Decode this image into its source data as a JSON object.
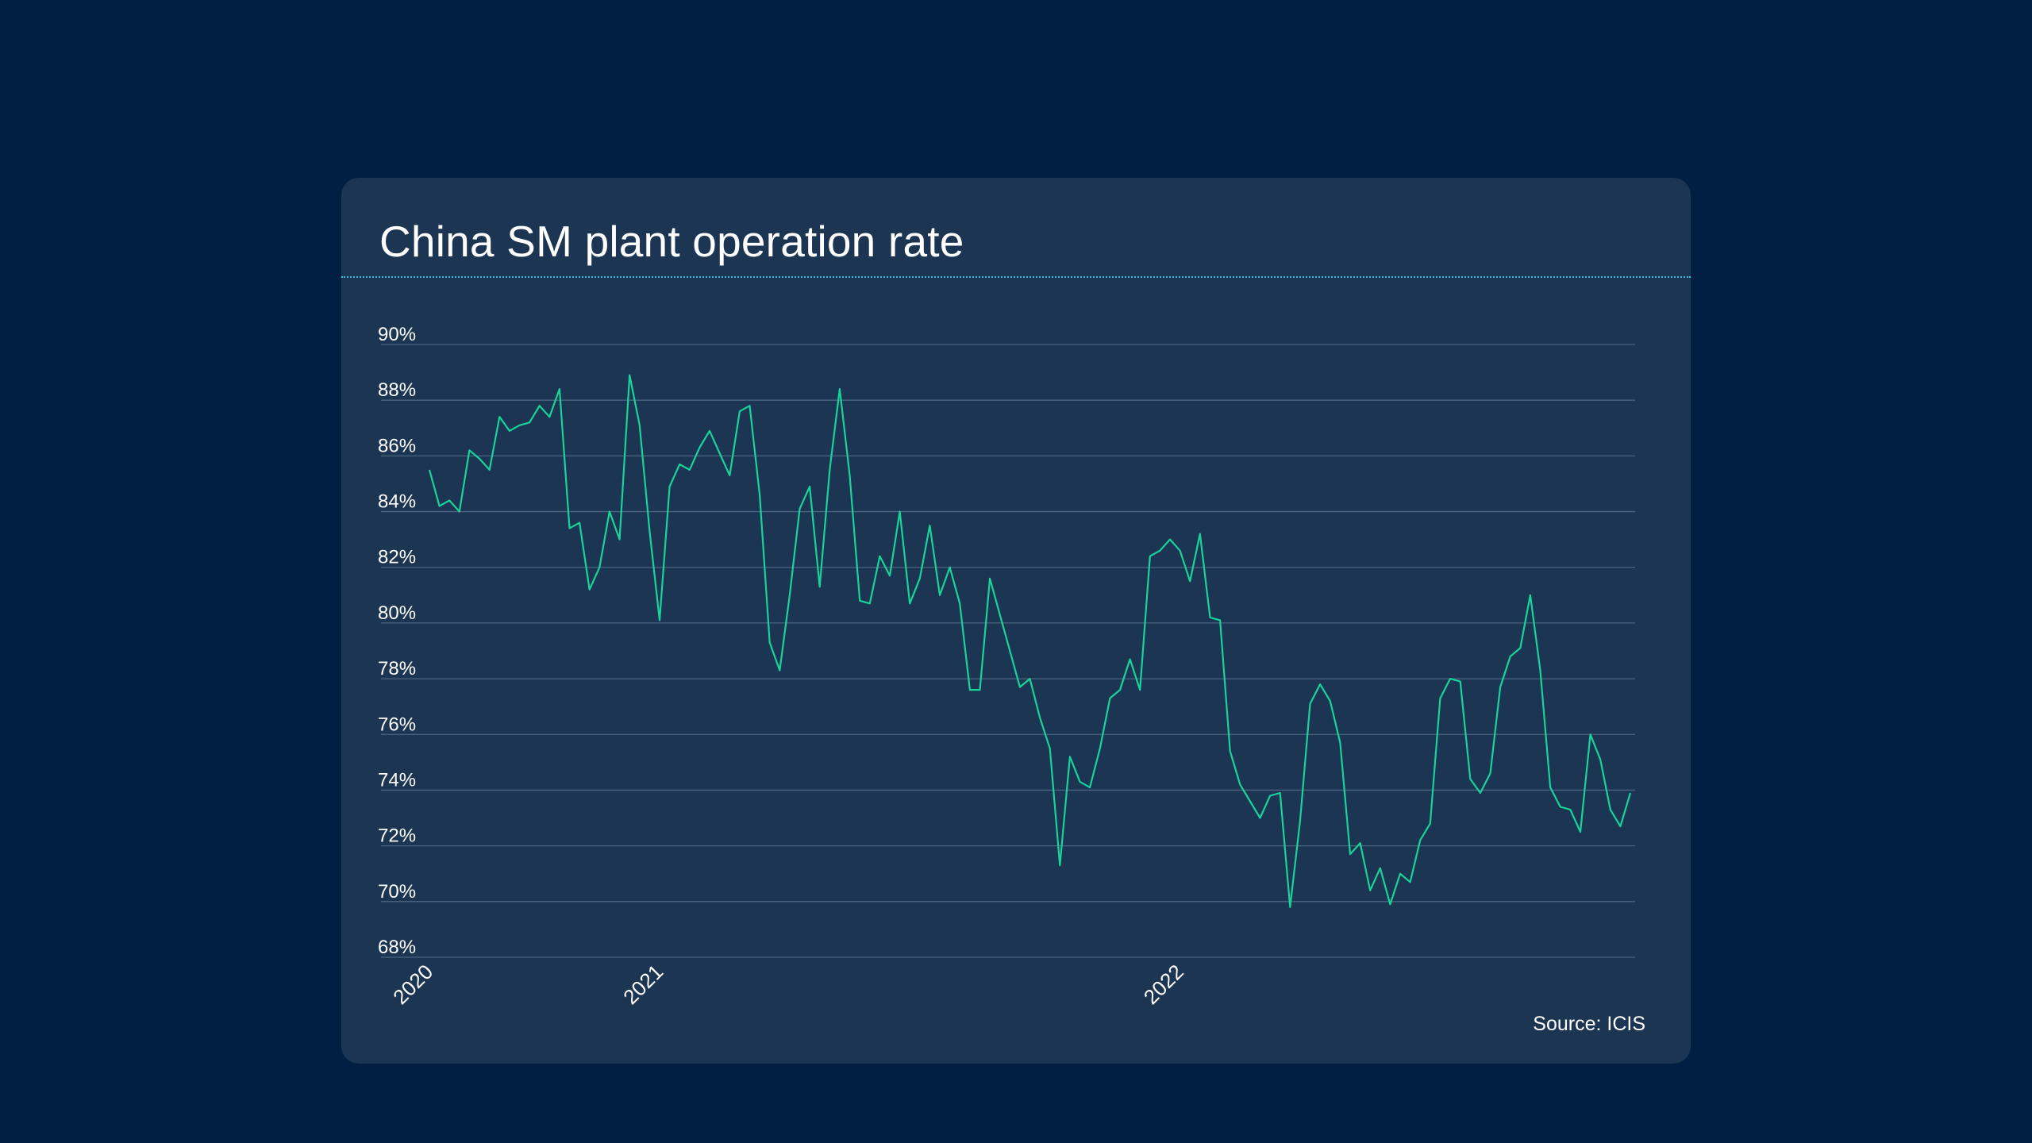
{
  "chart": {
    "title": "China SM plant operation rate",
    "source": "Source: ICIS"
  },
  "colors": {
    "background": "#001f42",
    "card": "#1b3553",
    "line": "#19d39a",
    "grid": "#4b6582",
    "title_rule": "#38bfd6",
    "text": "#ffffff"
  },
  "chart_data": {
    "type": "line",
    "title": "China SM plant operation rate",
    "xlabel": "",
    "ylabel": "",
    "y_unit": "%",
    "ylim": [
      68,
      90
    ],
    "y_ticks": [
      {
        "value": 90,
        "label": "90%"
      },
      {
        "value": 88,
        "label": "88%"
      },
      {
        "value": 86,
        "label": "86%"
      },
      {
        "value": 84,
        "label": "84%"
      },
      {
        "value": 82,
        "label": "82%"
      },
      {
        "value": 80,
        "label": "80%"
      },
      {
        "value": 78,
        "label": "78%"
      },
      {
        "value": 76,
        "label": "76%"
      },
      {
        "value": 74,
        "label": "74%"
      },
      {
        "value": 72,
        "label": "72%"
      },
      {
        "value": 70,
        "label": "70%"
      },
      {
        "value": 68,
        "label": "68%"
      }
    ],
    "x_ticks": [
      {
        "week": 0,
        "label": "2020"
      },
      {
        "week": 23,
        "label": "2021"
      },
      {
        "week": 75,
        "label": "2022"
      }
    ],
    "grid": true,
    "legend": "none",
    "x_unit": "week index from first 2020 observation",
    "series": [
      {
        "color": "#19d39a",
        "values": [
          85.5,
          84.2,
          84.4,
          84.0,
          86.2,
          85.9,
          85.5,
          87.4,
          86.9,
          87.1,
          87.2,
          87.8,
          87.4,
          88.4,
          83.4,
          83.6,
          81.2,
          82.0,
          84.0,
          83.0,
          88.9,
          87.1,
          83.3,
          80.1,
          84.9,
          85.7,
          85.5,
          86.3,
          86.9,
          86.1,
          85.3,
          87.6,
          87.8,
          84.6,
          79.3,
          78.3,
          81.0,
          84.1,
          84.9,
          81.3,
          85.5,
          88.4,
          85.3,
          80.8,
          80.7,
          82.4,
          81.7,
          84.0,
          80.7,
          81.6,
          83.5,
          81.0,
          82.0,
          80.7,
          77.6,
          77.6,
          81.6,
          80.3,
          79.0,
          77.7,
          78.0,
          76.6,
          75.5,
          71.3,
          75.2,
          74.3,
          74.1,
          75.5,
          77.3,
          77.6,
          78.7,
          77.6,
          82.4,
          82.6,
          83.0,
          82.6,
          81.5,
          83.2,
          80.2,
          80.1,
          75.4,
          74.2,
          73.6,
          73.0,
          73.8,
          73.9,
          69.8,
          72.9,
          77.1,
          77.8,
          77.2,
          75.7,
          71.7,
          72.1,
          70.4,
          71.2,
          69.9,
          71.0,
          70.7,
          72.2,
          72.8,
          77.3,
          78.0,
          77.9,
          74.4,
          73.9,
          74.6,
          77.7,
          78.8,
          79.1,
          81.0,
          78.3,
          74.1,
          73.4,
          73.3,
          72.5,
          76.0,
          75.1,
          73.3,
          72.7,
          73.9
        ]
      }
    ]
  }
}
